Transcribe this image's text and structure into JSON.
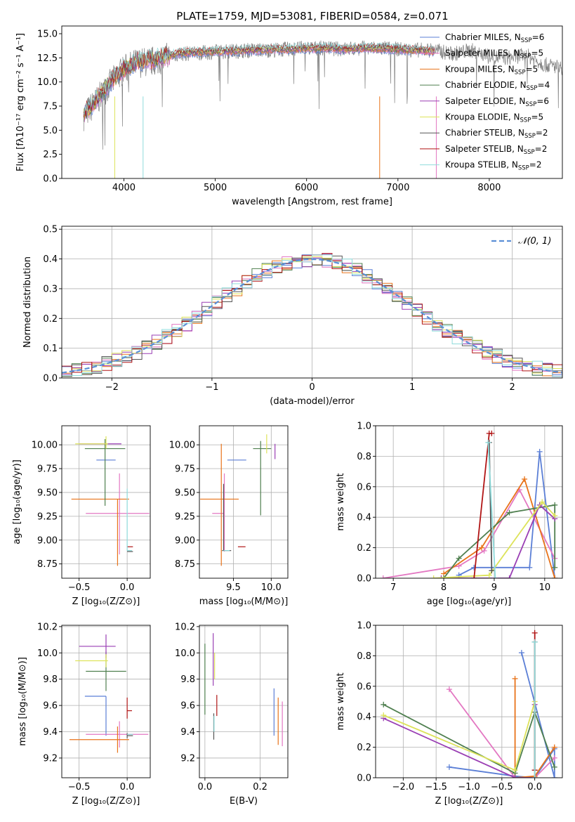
{
  "title": "PLATE=1759, MJD=53081, FIBERID=0584, z=0.071",
  "colors": {
    "Chabrier MILES": "#5b7fd6",
    "Salpeter MILES": "#e377c2",
    "Kroupa MILES": "#e8731a",
    "Chabrier ELODIE": "#4f7f4f",
    "Salpeter ELODIE": "#9a3fb4",
    "Kroupa ELODIE": "#dde35a",
    "Chabrier STELIB": "#555555",
    "Salpeter STELIB": "#b11515",
    "Kroupa STELIB": "#8fdcdc",
    "gauss": "#5b8fd6"
  },
  "chart_data": [
    {
      "id": "spectrum",
      "type": "line",
      "title": "PLATE=1759, MJD=53081, FIBERID=0584, z=0.071",
      "xlabel": "wavelength [Angstrom, rest frame]",
      "ylabel": "Flux [fλ10⁻¹⁷ erg cm⁻² s⁻¹ A⁻¹]",
      "xlim": [
        3320,
        8800
      ],
      "ylim": [
        0,
        15.8
      ],
      "xticks": [
        4000,
        5000,
        6000,
        7000,
        8000
      ],
      "yticks": [
        0.0,
        2.5,
        5.0,
        7.5,
        10.0,
        12.5,
        15.0
      ],
      "legend_position": "top-right",
      "legend": [
        {
          "name": "Chabrier MILES",
          "nssp": "6"
        },
        {
          "name": "Salpeter MILES",
          "nssp": "5"
        },
        {
          "name": "Kroupa MILES",
          "nssp": "5"
        },
        {
          "name": "Chabrier ELODIE",
          "nssp": "4"
        },
        {
          "name": "Salpeter ELODIE",
          "nssp": "6"
        },
        {
          "name": "Kroupa ELODIE",
          "nssp": "5"
        },
        {
          "name": "Chabrier STELIB",
          "nssp": "2"
        },
        {
          "name": "Salpeter STELIB",
          "nssp": "2"
        },
        {
          "name": "Kroupa STELIB",
          "nssp": "2"
        }
      ],
      "series": [
        {
          "name": "data",
          "x": [
            3560,
            3700,
            3850,
            4000,
            4150,
            4300,
            4450,
            4600,
            4800,
            5000,
            5200,
            5400,
            5600,
            5800,
            6000,
            6200,
            6400,
            6600,
            6800,
            7000,
            7200,
            7400,
            7600,
            7800,
            8000,
            8200,
            8400,
            8600,
            8800
          ],
          "y": [
            6.5,
            8.0,
            9.8,
            11.3,
            12.0,
            12.1,
            12.5,
            12.9,
            13.0,
            13.1,
            13.2,
            13.3,
            13.3,
            13.4,
            13.5,
            13.5,
            13.4,
            13.5,
            13.5,
            13.4,
            13.3,
            13.3,
            12.9,
            13.3,
            12.6,
            12.5,
            12.8,
            11.8,
            11.5
          ]
        },
        {
          "name": "model",
          "x": [
            3560,
            3700,
            3850,
            4000,
            4150,
            4300,
            4450,
            4600,
            4800,
            5000,
            5200,
            5400,
            5600,
            5800,
            6000,
            6200,
            6400,
            6600,
            6800,
            7000,
            7200,
            7400
          ],
          "y": [
            6.7,
            8.2,
            10.0,
            11.4,
            12.1,
            12.3,
            12.6,
            13.0,
            13.1,
            13.2,
            13.2,
            13.3,
            13.4,
            13.4,
            13.5,
            13.5,
            13.4,
            13.5,
            13.5,
            13.4,
            13.3,
            13.2
          ]
        }
      ]
    },
    {
      "id": "residuals",
      "type": "histogram",
      "xlabel": "(data-model)/error",
      "ylabel": "Normed distribution",
      "xlim": [
        -2.5,
        2.5
      ],
      "ylim": [
        0,
        0.51
      ],
      "xticks": [
        -2,
        -1,
        0,
        1,
        2
      ],
      "yticks": [
        0.0,
        0.1,
        0.2,
        0.3,
        0.4,
        0.5
      ],
      "grid": true,
      "legend_position": "top-right",
      "legend": [
        "𝒩(0, 1)"
      ],
      "reference": {
        "name": "𝒩(0, 1)",
        "mean": 0,
        "sigma": 1
      }
    },
    {
      "id": "age-vs-Z",
      "type": "errorbar",
      "xlabel": "Z [log₁₀(Z/Z⊙)]",
      "ylabel": "age  [log₁₀(age/yr)]",
      "xlim": [
        -0.68,
        0.24
      ],
      "ylim": [
        8.6,
        10.2
      ],
      "xticks": [
        -0.5,
        0.0
      ],
      "yticks": [
        8.75,
        9.0,
        9.25,
        9.5,
        9.75,
        10.0
      ],
      "grid": true,
      "points": [
        {
          "model": "Chabrier MILES",
          "x": -0.18,
          "xerr": [
            0.14,
            0.06
          ],
          "y": 9.84,
          "yerr": [
            0.0,
            0.0
          ]
        },
        {
          "model": "Salpeter MILES",
          "x": -0.08,
          "xerr": [
            0.35,
            0.31
          ],
          "y": 9.28,
          "yerr": [
            0.43,
            0.42
          ]
        },
        {
          "model": "Kroupa MILES",
          "x": -0.1,
          "xerr": [
            0.48,
            0.12
          ],
          "y": 9.43,
          "yerr": [
            0.7,
            0.0
          ]
        },
        {
          "model": "Chabrier ELODIE",
          "x": -0.23,
          "xerr": [
            0.21,
            0.21
          ],
          "y": 9.96,
          "yerr": [
            0.6,
            0.1
          ]
        },
        {
          "model": "Salpeter ELODIE",
          "x": -0.22,
          "xerr": [
            0.28,
            0.16
          ],
          "y": 10.01,
          "yerr": [
            0.0,
            0.0
          ]
        },
        {
          "model": "Kroupa ELODIE",
          "x": -0.22,
          "xerr": [
            0.32,
            0.02
          ],
          "y": 10.01,
          "yerr": [
            0.05,
            0.08
          ]
        },
        {
          "model": "Chabrier STELIB",
          "x": 0.0,
          "xerr": [
            0.0,
            0.06
          ],
          "y": 8.88,
          "yerr": [
            0.0,
            0.0
          ]
        },
        {
          "model": "Salpeter STELIB",
          "x": 0.0,
          "xerr": [
            0.0,
            0.06
          ],
          "y": 8.93,
          "yerr": [
            0.0,
            0.0
          ]
        },
        {
          "model": "Kroupa STELIB",
          "x": 0.0,
          "xerr": [
            0.0,
            0.05
          ],
          "y": 8.89,
          "yerr": [
            0.0,
            0.65
          ]
        }
      ]
    },
    {
      "id": "age-vs-mass",
      "type": "errorbar",
      "xlabel": "mass [log₁₀(M/M⊙)]",
      "ylabel": "",
      "xlim": [
        9.05,
        10.22
      ],
      "ylim": [
        8.6,
        10.2
      ],
      "xticks": [
        9.5,
        10.0
      ],
      "yticks": [
        8.75,
        9.0,
        9.25,
        9.5,
        9.75,
        10.0
      ],
      "grid": true,
      "points": [
        {
          "model": "Chabrier MILES",
          "x": 9.67,
          "xerr": [
            0.25,
            0.0
          ],
          "y": 9.84,
          "yerr": [
            0.0,
            0.0
          ]
        },
        {
          "model": "Salpeter MILES",
          "x": 9.38,
          "xerr": [
            0.16,
            0.0
          ],
          "y": 9.28,
          "yerr": [
            0.4,
            0.42
          ]
        },
        {
          "model": "Kroupa MILES",
          "x": 9.34,
          "xerr": [
            0.28,
            0.23
          ],
          "y": 9.43,
          "yerr": [
            0.7,
            0.58
          ]
        },
        {
          "model": "Chabrier ELODIE",
          "x": 9.86,
          "xerr": [
            0.1,
            0.14
          ],
          "y": 9.96,
          "yerr": [
            0.7,
            0.08
          ]
        },
        {
          "model": "Salpeter ELODIE",
          "x": 10.05,
          "xerr": [
            0.0,
            0.0
          ],
          "y": 10.01,
          "yerr": [
            0.16,
            0.0
          ]
        },
        {
          "model": "Kroupa ELODIE",
          "x": 9.94,
          "xerr": [
            0.0,
            0.0
          ],
          "y": 10.01,
          "yerr": [
            0.1,
            0.1
          ]
        },
        {
          "model": "Chabrier STELIB",
          "x": 9.37,
          "xerr": [
            0.02,
            0.1
          ],
          "y": 8.89,
          "yerr": [
            0.0,
            0.7
          ]
        },
        {
          "model": "Salpeter STELIB",
          "x": 9.56,
          "xerr": [
            0.0,
            0.1
          ],
          "y": 8.93,
          "yerr": [
            0.0,
            0.0
          ]
        },
        {
          "model": "Kroupa STELIB",
          "x": 9.37,
          "xerr": [
            0.0,
            0.08
          ],
          "y": 8.89,
          "yerr": [
            0.0,
            0.0
          ]
        }
      ]
    },
    {
      "id": "mass-weight-vs-age",
      "type": "line",
      "xlabel": "age  [log₁₀(age/yr)]",
      "ylabel": "mass weight",
      "xlim": [
        6.65,
        10.35
      ],
      "ylim": [
        0,
        1.0
      ],
      "xticks": [
        7,
        8,
        9,
        10
      ],
      "yticks": [
        0.0,
        0.2,
        0.4,
        0.6,
        0.8,
        1.0
      ],
      "grid": true,
      "series": [
        {
          "name": "Chabrier MILES",
          "x": [
            8.3,
            8.6,
            9.7,
            9.9,
            10.2
          ],
          "y": [
            0.02,
            0.07,
            0.07,
            0.83,
            0.0
          ]
        },
        {
          "name": "Salpeter MILES",
          "x": [
            6.8,
            8.3,
            8.8,
            9.5,
            10.2
          ],
          "y": [
            0.0,
            0.08,
            0.18,
            0.58,
            0.13
          ]
        },
        {
          "name": "Kroupa MILES",
          "x": [
            8.0,
            8.75,
            9.6,
            10.2
          ],
          "y": [
            0.03,
            0.2,
            0.65,
            0.0
          ]
        },
        {
          "name": "Chabrier ELODIE",
          "x": [
            8.0,
            8.3,
            9.3,
            10.2,
            10.2
          ],
          "y": [
            0.0,
            0.13,
            0.43,
            0.48,
            0.07
          ]
        },
        {
          "name": "Salpeter ELODIE",
          "x": [
            7.95,
            9.3,
            9.9,
            10.2
          ],
          "y": [
            0.0,
            0.0,
            0.48,
            0.39
          ]
        },
        {
          "name": "Kroupa ELODIE",
          "x": [
            7.8,
            8.9,
            9.95,
            10.2
          ],
          "y": [
            0.0,
            0.02,
            0.5,
            0.41
          ]
        },
        {
          "name": "Chabrier STELIB",
          "x": [
            8.9,
            8.95
          ],
          "y": [
            0.89,
            0.05
          ]
        },
        {
          "name": "Salpeter STELIB",
          "x": [
            8.6,
            8.9,
            8.95
          ],
          "y": [
            0.0,
            0.95,
            0.95
          ]
        },
        {
          "name": "Kroupa STELIB",
          "x": [
            8.88,
            9.02
          ],
          "y": [
            0.89,
            0.0
          ]
        }
      ]
    },
    {
      "id": "mass-vs-Z",
      "type": "errorbar",
      "xlabel": "Z [log₁₀(Z/Z⊙)]",
      "ylabel": "mass [log₁₀(M/M⊙)]",
      "xlim": [
        -0.68,
        0.24
      ],
      "ylim": [
        9.05,
        10.21
      ],
      "xticks": [
        -0.5,
        0.0
      ],
      "yticks": [
        9.2,
        9.4,
        9.6,
        9.8,
        10.0,
        10.2
      ],
      "grid": true,
      "points": [
        {
          "model": "Chabrier MILES",
          "x": -0.22,
          "xerr": [
            0.22,
            0.0
          ],
          "y": 9.67,
          "yerr": [
            0.3,
            0.0
          ]
        },
        {
          "model": "Salpeter MILES",
          "x": -0.08,
          "xerr": [
            0.35,
            0.3
          ],
          "y": 9.38,
          "yerr": [
            0.1,
            0.1
          ]
        },
        {
          "model": "Kroupa MILES",
          "x": -0.1,
          "xerr": [
            0.5,
            0.12
          ],
          "y": 9.34,
          "yerr": [
            0.1,
            0.1
          ]
        },
        {
          "model": "Chabrier ELODIE",
          "x": -0.22,
          "xerr": [
            0.21,
            0.21
          ],
          "y": 9.86,
          "yerr": [
            0.15,
            0.15
          ]
        },
        {
          "model": "Salpeter ELODIE",
          "x": -0.22,
          "xerr": [
            0.28,
            0.1
          ],
          "y": 10.05,
          "yerr": [
            0.09,
            0.09
          ]
        },
        {
          "model": "Kroupa ELODIE",
          "x": -0.22,
          "xerr": [
            0.32,
            0.02
          ],
          "y": 9.94,
          "yerr": [
            0.05,
            0.05
          ]
        },
        {
          "model": "Chabrier STELIB",
          "x": 0.0,
          "xerr": [
            0.0,
            0.06
          ],
          "y": 9.37,
          "yerr": [
            0.02,
            0.02
          ]
        },
        {
          "model": "Salpeter STELIB",
          "x": 0.0,
          "xerr": [
            0.0,
            0.05
          ],
          "y": 9.56,
          "yerr": [
            0.06,
            0.1
          ]
        },
        {
          "model": "Kroupa STELIB",
          "x": 0.0,
          "xerr": [
            0.0,
            0.06
          ],
          "y": 9.38,
          "yerr": [
            0.0,
            0.0
          ]
        }
      ]
    },
    {
      "id": "mass-vs-ebv",
      "type": "errorbar",
      "xlabel": "E(B-V)",
      "ylabel": "",
      "xlim": [
        -0.02,
        0.3
      ],
      "ylim": [
        9.05,
        10.21
      ],
      "xticks": [
        0.0,
        0.2
      ],
      "yticks": [
        9.2,
        9.4,
        9.6,
        9.8,
        10.0,
        10.2
      ],
      "grid": true,
      "points": [
        {
          "model": "Chabrier MILES",
          "x": 0.25,
          "xerr": [
            0.0,
            0.0
          ],
          "y": 9.55,
          "yerr": [
            0.18,
            0.18
          ]
        },
        {
          "model": "Salpeter MILES",
          "x": 0.28,
          "xerr": [
            0.0,
            0.0
          ],
          "y": 9.46,
          "yerr": [
            0.17,
            0.17
          ]
        },
        {
          "model": "Kroupa MILES",
          "x": 0.265,
          "xerr": [
            0.0,
            0.0
          ],
          "y": 9.48,
          "yerr": [
            0.18,
            0.18
          ]
        },
        {
          "model": "Chabrier ELODIE",
          "x": 0.0,
          "xerr": [
            0.0,
            0.0
          ],
          "y": 9.8,
          "yerr": [
            0.27,
            0.27
          ]
        },
        {
          "model": "Salpeter ELODIE",
          "x": 0.03,
          "xerr": [
            0.0,
            0.0
          ],
          "y": 9.95,
          "yerr": [
            0.2,
            0.2
          ]
        },
        {
          "model": "Kroupa ELODIE",
          "x": 0.035,
          "xerr": [
            0.0,
            0.0
          ],
          "y": 9.9,
          "yerr": [
            0.1,
            0.1
          ]
        },
        {
          "model": "Chabrier STELIB",
          "x": 0.032,
          "xerr": [
            0.0,
            0.0
          ],
          "y": 9.44,
          "yerr": [
            0.1,
            0.1
          ]
        },
        {
          "model": "Salpeter STELIB",
          "x": 0.043,
          "xerr": [
            0.0,
            0.0
          ],
          "y": 9.6,
          "yerr": [
            0.08,
            0.08
          ]
        },
        {
          "model": "Kroupa STELIB",
          "x": 0.033,
          "xerr": [
            0.0,
            0.0
          ],
          "y": 9.46,
          "yerr": [
            0.06,
            0.06
          ]
        }
      ]
    },
    {
      "id": "mass-weight-vs-Z",
      "type": "line",
      "xlabel": "Z [log₁₀(Z/Z⊙)]",
      "ylabel": "mass weight",
      "xlim": [
        -2.42,
        0.42
      ],
      "ylim": [
        0,
        1.0
      ],
      "xticks": [
        -2.0,
        -1.5,
        -1.0,
        -0.5,
        0.0
      ],
      "yticks": [
        0.0,
        0.2,
        0.4,
        0.6,
        0.8,
        1.0
      ],
      "grid": true,
      "series": [
        {
          "name": "Chabrier MILES",
          "x": [
            -1.3,
            -0.3,
            0.0,
            0.3,
            0.3,
            -0.2
          ],
          "y": [
            0.07,
            0.01,
            0.0,
            0.19,
            0.0,
            0.82
          ]
        },
        {
          "name": "Salpeter MILES",
          "x": [
            -1.3,
            -0.3,
            0.0,
            0.3
          ],
          "y": [
            0.58,
            0.0,
            0.0,
            0.13
          ]
        },
        {
          "name": "Kroupa MILES",
          "x": [
            -0.3,
            -0.3,
            0.0,
            0.3
          ],
          "y": [
            0.65,
            0.0,
            0.01,
            0.2
          ]
        },
        {
          "name": "Chabrier ELODIE",
          "x": [
            -2.3,
            -0.3,
            0.0,
            0.3
          ],
          "y": [
            0.48,
            0.03,
            0.43,
            0.07
          ]
        },
        {
          "name": "Salpeter ELODIE",
          "x": [
            -2.3,
            -0.3,
            0.0,
            0.0
          ],
          "y": [
            0.39,
            0.0,
            0.0,
            0.48
          ]
        },
        {
          "name": "Kroupa ELODIE",
          "x": [
            -2.3,
            -0.3,
            0.0,
            0.0
          ],
          "y": [
            0.41,
            0.05,
            0.5,
            0.0
          ]
        },
        {
          "name": "Chabrier STELIB",
          "x": [
            0.0,
            0.0
          ],
          "y": [
            0.05,
            0.89
          ]
        },
        {
          "name": "Salpeter STELIB",
          "x": [
            0.0,
            0.0
          ],
          "y": [
            0.05,
            0.95
          ]
        },
        {
          "name": "Kroupa STELIB",
          "x": [
            0.0,
            0.0
          ],
          "y": [
            0.0,
            0.89
          ]
        }
      ]
    }
  ]
}
